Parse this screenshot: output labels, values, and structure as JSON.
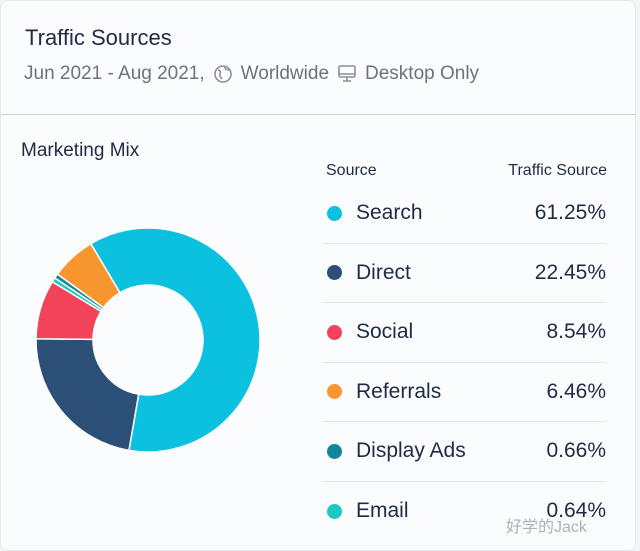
{
  "header": {
    "title": "Traffic Sources",
    "date_range": "Jun 2021 - Aug 2021,",
    "region": "Worldwide",
    "device": "Desktop Only"
  },
  "chart_data": {
    "type": "pie",
    "title": "Marketing Mix",
    "donut": true,
    "columns": {
      "source": "Source",
      "value": "Traffic Source"
    },
    "slices": [
      {
        "label": "Search",
        "value": 61.25,
        "display": "61.25%",
        "color": "#0cc0df"
      },
      {
        "label": "Direct",
        "value": 22.45,
        "display": "22.45%",
        "color": "#2c4f78"
      },
      {
        "label": "Social",
        "value": 8.54,
        "display": "8.54%",
        "color": "#f2435a"
      },
      {
        "label": "Referrals",
        "value": 6.46,
        "display": "6.46%",
        "color": "#f7962f"
      },
      {
        "label": "Display Ads",
        "value": 0.66,
        "display": "0.66%",
        "color": "#12879c"
      },
      {
        "label": "Email",
        "value": 0.64,
        "display": "0.64%",
        "color": "#1ec9c0"
      }
    ],
    "draw_order": [
      "Search",
      "Direct",
      "Social",
      "Email",
      "Display Ads",
      "Referrals"
    ]
  },
  "watermark": "好学的Jack"
}
